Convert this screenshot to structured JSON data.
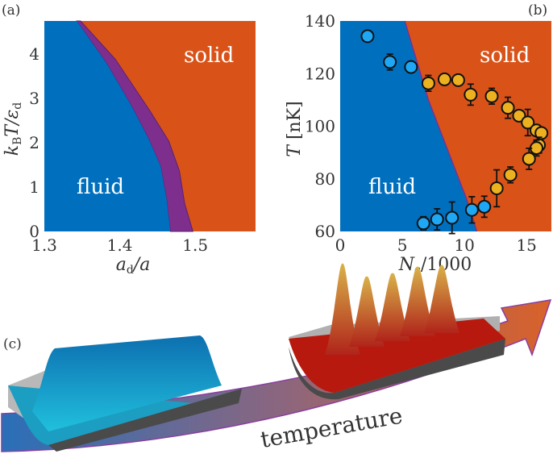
{
  "colors": {
    "fluid": "#0070BE",
    "solid": "#D95319",
    "coexistence": "#7E2F8E",
    "point_fluid": "#1EA7F5",
    "point_solid": "#EDB120"
  },
  "panel_a": {
    "label": "(a)",
    "region_labels": {
      "fluid": "fluid",
      "solid": "solid"
    },
    "chart_data": {
      "type": "area",
      "xlabel": "a_d/a",
      "ylabel": "k_B T/ε_d",
      "xlim": [
        1.3,
        1.58
      ],
      "ylim": [
        0,
        4.75
      ],
      "xticks": [
        "1.3",
        "1.4",
        "1.5"
      ],
      "xtick_values": [
        1.3,
        1.4,
        1.5
      ],
      "yticks": [
        "0",
        "1",
        "2",
        "3",
        "4"
      ],
      "ytick_values": [
        0,
        1,
        2,
        3,
        4
      ],
      "fluid_boundary": {
        "x": [
          1.343,
          1.383,
          1.415,
          1.438,
          1.454,
          1.462,
          1.467
        ],
        "y": [
          4.75,
          3.78,
          2.85,
          2.1,
          1.48,
          0.74,
          0
        ]
      },
      "solid_boundary": {
        "x": [
          1.348,
          1.394,
          1.44,
          1.465,
          1.479,
          1.486,
          1.497
        ],
        "y": [
          4.75,
          3.89,
          2.72,
          2.04,
          1.37,
          0.63,
          0
        ]
      }
    }
  },
  "panel_b": {
    "label": "(b)",
    "region_labels": {
      "fluid": "fluid",
      "solid": "solid"
    },
    "chart_data": {
      "type": "scatter",
      "xlabel": "N_c/1000",
      "ylabel": "T [nK]",
      "xlim": [
        0,
        17
      ],
      "ylim": [
        60,
        140
      ],
      "xticks": [
        "0",
        "5",
        "10",
        "15"
      ],
      "xtick_values": [
        0,
        5,
        10,
        15
      ],
      "yticks": [
        "60",
        "80",
        "100",
        "120",
        "140"
      ],
      "ytick_values": [
        60,
        80,
        100,
        120,
        140
      ],
      "boundary": {
        "x": [
          5.2,
          7.1,
          10.2,
          11.0
        ],
        "y": [
          140,
          110,
          72,
          60
        ]
      },
      "series": [
        {
          "phase": "fluid",
          "x": [
            2.2,
            4.0,
            5.7,
            6.7,
            7.8,
            9.0,
            10.6,
            11.6
          ],
          "y": [
            134.2,
            124.4,
            122.5,
            63.1,
            64.6,
            65.2,
            68.2,
            69.4
          ],
          "yerr": [
            1.5,
            3,
            1,
            2.5,
            4,
            6,
            5,
            4
          ]
        },
        {
          "phase": "solid",
          "x": [
            7.1,
            8.4,
            9.5,
            10.5,
            12.2,
            13.5,
            14.4,
            15.1,
            15.8,
            16.2,
            16.0,
            15.8,
            15.2,
            13.7,
            12.6
          ],
          "y": [
            116.3,
            117.8,
            117.5,
            112,
            111.4,
            107,
            104,
            101.4,
            98.4,
            97.4,
            92.8,
            91.7,
            87.6,
            81.5,
            76.4
          ],
          "yerr": [
            3,
            1,
            1,
            4,
            3,
            4,
            2,
            5,
            2,
            2,
            3,
            3,
            4,
            3,
            7
          ]
        }
      ]
    }
  },
  "panel_c": {
    "label": "(c)",
    "arrow_label": "temperature"
  }
}
